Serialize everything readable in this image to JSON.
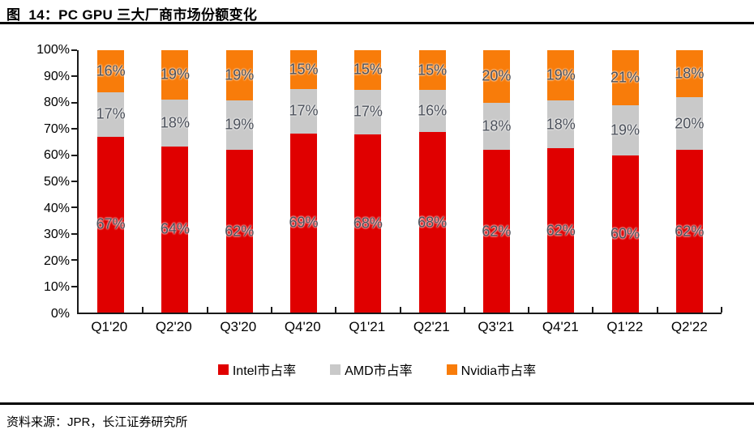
{
  "header": {
    "title": "图  14：PC GPU 三大厂商市场份额变化"
  },
  "footer": {
    "source": "资料来源：JPR，长江证券研究所"
  },
  "chart_data": {
    "type": "bar",
    "stacked": true,
    "percent_stacked": true,
    "title": "PC GPU 三大厂商市场份额变化",
    "categories": [
      "Q1'20",
      "Q2'20",
      "Q3'20",
      "Q4'20",
      "Q1'21",
      "Q2'21",
      "Q3'21",
      "Q4'21",
      "Q1'22",
      "Q2'22"
    ],
    "series": [
      {
        "name": "Intel市占率",
        "color": "#e00000",
        "values": [
          67,
          64,
          62,
          69,
          68,
          68,
          62,
          62,
          60,
          62
        ]
      },
      {
        "name": "AMD市占率",
        "color": "#c9c9c9",
        "values": [
          17,
          18,
          19,
          17,
          17,
          16,
          18,
          18,
          19,
          20
        ]
      },
      {
        "name": "Nvidia市占率",
        "color": "#f87c0a",
        "values": [
          16,
          19,
          19,
          15,
          15,
          15,
          20,
          19,
          21,
          18
        ]
      }
    ],
    "value_suffix": "%",
    "label_color": "#4a4f59",
    "y_ticks": [
      "0%",
      "10%",
      "20%",
      "30%",
      "40%",
      "50%",
      "60%",
      "70%",
      "80%",
      "90%",
      "100%"
    ],
    "ylim": [
      0,
      100
    ],
    "grid": false,
    "legend_position": "bottom",
    "axis_color": "#1a1a1a"
  }
}
